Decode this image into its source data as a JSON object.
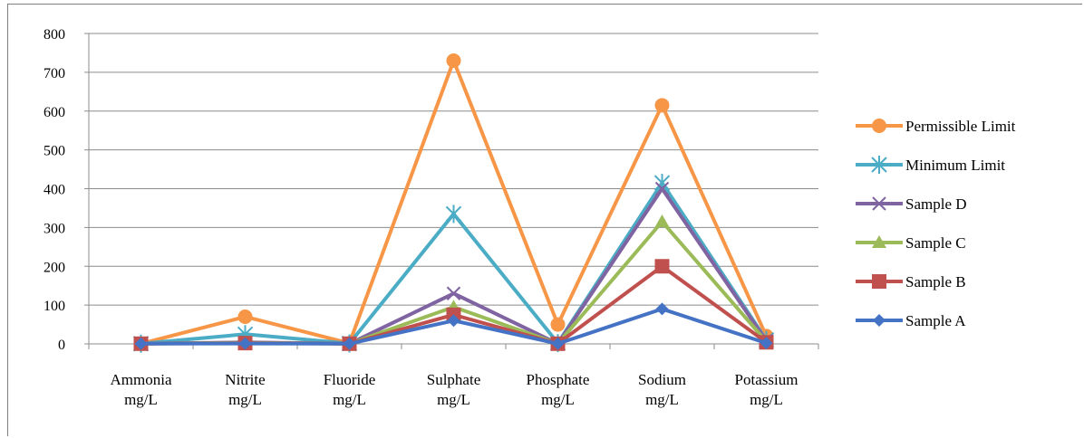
{
  "chart_data": {
    "type": "line",
    "categories": [
      [
        "Ammonia",
        "mg/L"
      ],
      [
        "Nitrite",
        "mg/L"
      ],
      [
        "Fluoride",
        "mg/L"
      ],
      [
        "Sulphate",
        "mg/L"
      ],
      [
        "Phosphate",
        "mg/L"
      ],
      [
        "Sodium",
        "mg/L"
      ],
      [
        "Potassium",
        "mg/L"
      ]
    ],
    "ylim": [
      0,
      800
    ],
    "yticks": [
      "0",
      "100",
      "200",
      "300",
      "400",
      "500",
      "600",
      "700",
      "800"
    ],
    "grid": true,
    "legend_position": "right",
    "series": [
      {
        "name": "Sample A",
        "color": "#4472c4",
        "marker": "diamond",
        "values": [
          0.5,
          1,
          0.5,
          60,
          0.5,
          90,
          2
        ]
      },
      {
        "name": "Sample B",
        "color": "#c0504d",
        "marker": "square",
        "values": [
          0.5,
          2,
          0.5,
          75,
          0.5,
          200,
          4
        ]
      },
      {
        "name": "Sample C",
        "color": "#9bbb59",
        "marker": "triangle",
        "values": [
          0.5,
          3,
          0.5,
          95,
          0.5,
          315,
          6
        ]
      },
      {
        "name": "Sample D",
        "color": "#8064a2",
        "marker": "x",
        "values": [
          0.5,
          4,
          0.5,
          130,
          0.5,
          400,
          8
        ]
      },
      {
        "name": "Minimum  Limit",
        "color": "#4bacc6",
        "marker": "star",
        "values": [
          0.5,
          25,
          1,
          335,
          2,
          415,
          10
        ]
      },
      {
        "name": "Permissible Limit",
        "color": "#f79646",
        "marker": "circle",
        "values": [
          0.5,
          70,
          1.5,
          730,
          50,
          615,
          20
        ]
      }
    ]
  }
}
